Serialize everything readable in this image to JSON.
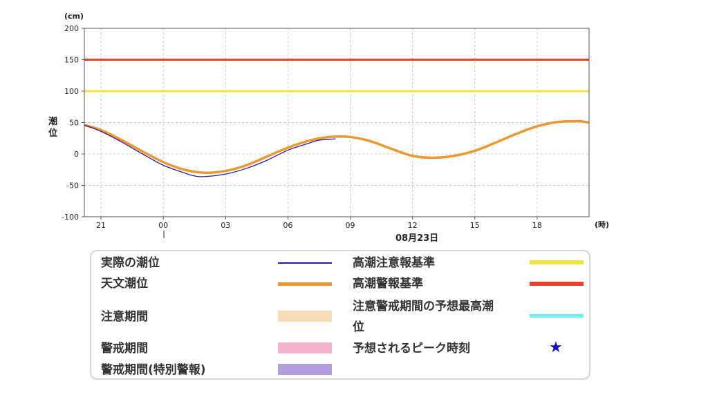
{
  "chart_data": {
    "type": "line",
    "y_unit_label": "(cm)",
    "ylabel": "潮位",
    "x_unit_label": "(時)",
    "date_label": "08月23日",
    "ylim": [
      -100,
      200
    ],
    "y_ticks": [
      -100,
      -50,
      0,
      50,
      100,
      150,
      200
    ],
    "x_ticks": [
      "21",
      "00",
      "03",
      "06",
      "09",
      "12",
      "15",
      "18"
    ],
    "grid": true,
    "thresholds": [
      {
        "name": "高潮注意報基準",
        "value": 100,
        "color": "#f0e43a"
      },
      {
        "name": "高潮警報基準",
        "value": 150,
        "color": "#e8432a"
      }
    ],
    "series": [
      {
        "name": "天文潮位",
        "color": "#f0962e",
        "x": [
          -3.8,
          -3,
          -2,
          -1,
          0,
          1,
          2,
          3,
          4,
          5,
          6,
          7,
          8,
          9,
          10,
          11,
          12,
          13,
          14,
          15,
          16,
          17,
          18,
          19,
          20,
          20.5
        ],
        "values": [
          46,
          38,
          22,
          4,
          -13,
          -25,
          -30,
          -27,
          -18,
          -4,
          10,
          21,
          27,
          27,
          20,
          8,
          -3,
          -6,
          -3,
          5,
          18,
          32,
          44,
          51,
          52,
          50
        ]
      },
      {
        "name": "実際の潮位",
        "color": "#2b1a9e",
        "x": [
          -3.8,
          -3,
          -2,
          -1,
          0,
          1,
          1.5,
          2,
          3,
          4,
          5,
          6,
          7,
          7.5,
          8.3
        ],
        "values": [
          46,
          36,
          19,
          0,
          -18,
          -30,
          -35,
          -36,
          -32,
          -23,
          -10,
          6,
          17,
          22,
          24
        ]
      }
    ]
  },
  "legend": {
    "items": [
      {
        "label": "実際の潮位",
        "color": "#2b1a9e"
      },
      {
        "label": "天文潮位",
        "color": "#f0962e"
      },
      {
        "label": "注意期間",
        "color": "#f7ddb3"
      },
      {
        "label": "警戒期間",
        "color": "#f2b4ce"
      },
      {
        "label": "警戒期間(特別警報)",
        "color": "#b49ee0"
      },
      {
        "label": "高潮注意報基準",
        "color": "#f0e43a"
      },
      {
        "label": "高潮警報基準",
        "color": "#e8432a"
      },
      {
        "label_line1": "注意警戒期間の予想最高潮",
        "label_line2": "位",
        "color": "#6ef0f8"
      },
      {
        "label": "予想されるピーク時刻",
        "color": "#1010d0",
        "star": "★"
      }
    ]
  }
}
